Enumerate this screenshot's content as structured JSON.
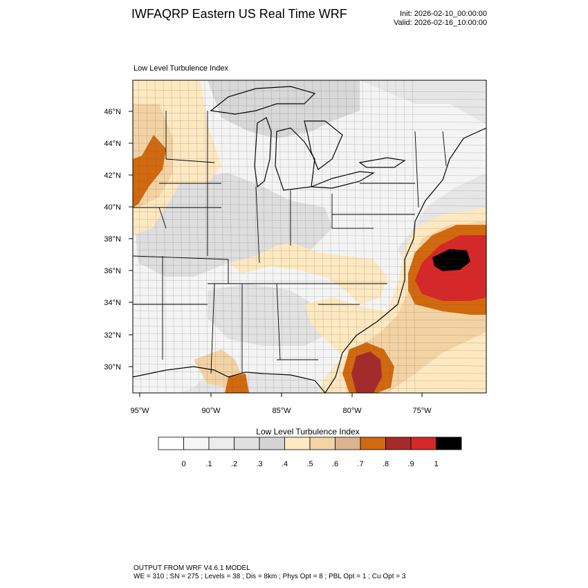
{
  "header": {
    "title": "IWFAQRP Eastern US Real Time WRF",
    "init": "Init: 2026-02-10_00:00:00",
    "valid": "Valid: 2026-02-16_10:00:00"
  },
  "map": {
    "subtitle": "Low Level Turbulence Index",
    "lat_labels": [
      "46°N",
      "44°N",
      "42°N",
      "40°N",
      "38°N",
      "36°N",
      "34°N",
      "32°N",
      "30°N"
    ],
    "lon_labels": [
      "95°W",
      "90°W",
      "85°W",
      "80°W",
      "75°W"
    ]
  },
  "colorbar": {
    "title": "Low Level Turbulence Index",
    "tick_labels": [
      "0",
      ".1",
      ".2",
      ".3",
      ".4",
      ".5",
      ".6",
      ".7",
      ".8",
      ".9",
      "1"
    ],
    "colors": [
      "#ffffff",
      "#f6f6f6",
      "#ececec",
      "#e0e0e0",
      "#d4d4d4",
      "#fde8c0",
      "#f3d3a4",
      "#d9b48e",
      "#d2690e",
      "#a52a2a",
      "#d62828",
      "#000000"
    ]
  },
  "footer": {
    "line1": "OUTPUT FROM WRF V4.6.1 MODEL",
    "line2": "WE = 310 ; SN = 275 ; Levels = 38 ; Dis = 8km ; Phys Opt = 8 ; PBL Opt = 1 ; Cu Opt = 3"
  }
}
